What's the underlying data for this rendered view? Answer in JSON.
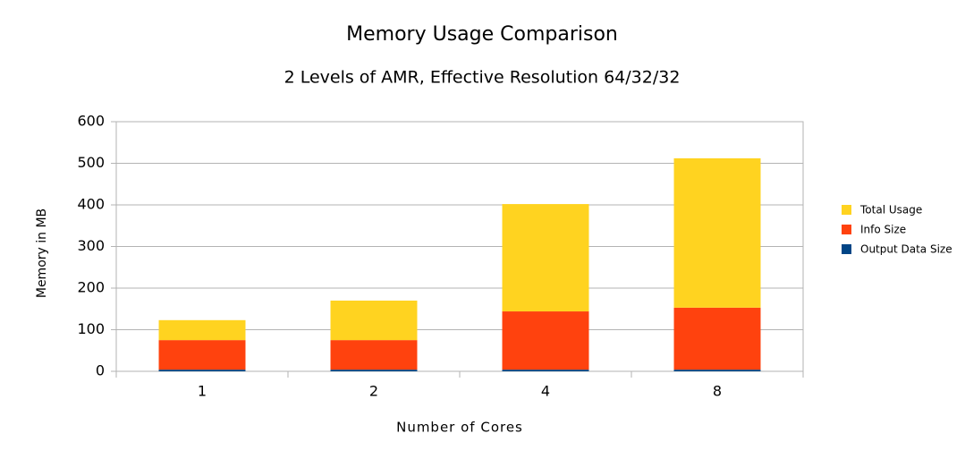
{
  "chart_data": {
    "type": "stacked-bar",
    "title": "Memory Usage Comparison",
    "subtitle": "2 Levels of AMR, Effective Resolution 64/32/32",
    "x_label": "Number of Cores",
    "y_label": "Memory in MB",
    "categories": [
      "1",
      "2",
      "4",
      "8"
    ],
    "series": [
      {
        "name": "Output Data Size",
        "color": "#004586",
        "values": [
          4,
          4,
          4,
          4
        ]
      },
      {
        "name": "Info Size",
        "color": "#ff420e",
        "values": [
          71,
          71,
          140,
          149
        ]
      },
      {
        "name": "Total Usage",
        "color": "#ffd320",
        "values": [
          48,
          95,
          258,
          359
        ]
      }
    ],
    "ylim": [
      0,
      600
    ],
    "yticks": [
      0,
      100,
      200,
      300,
      400,
      500,
      600
    ],
    "grid": true,
    "legend": "right"
  }
}
